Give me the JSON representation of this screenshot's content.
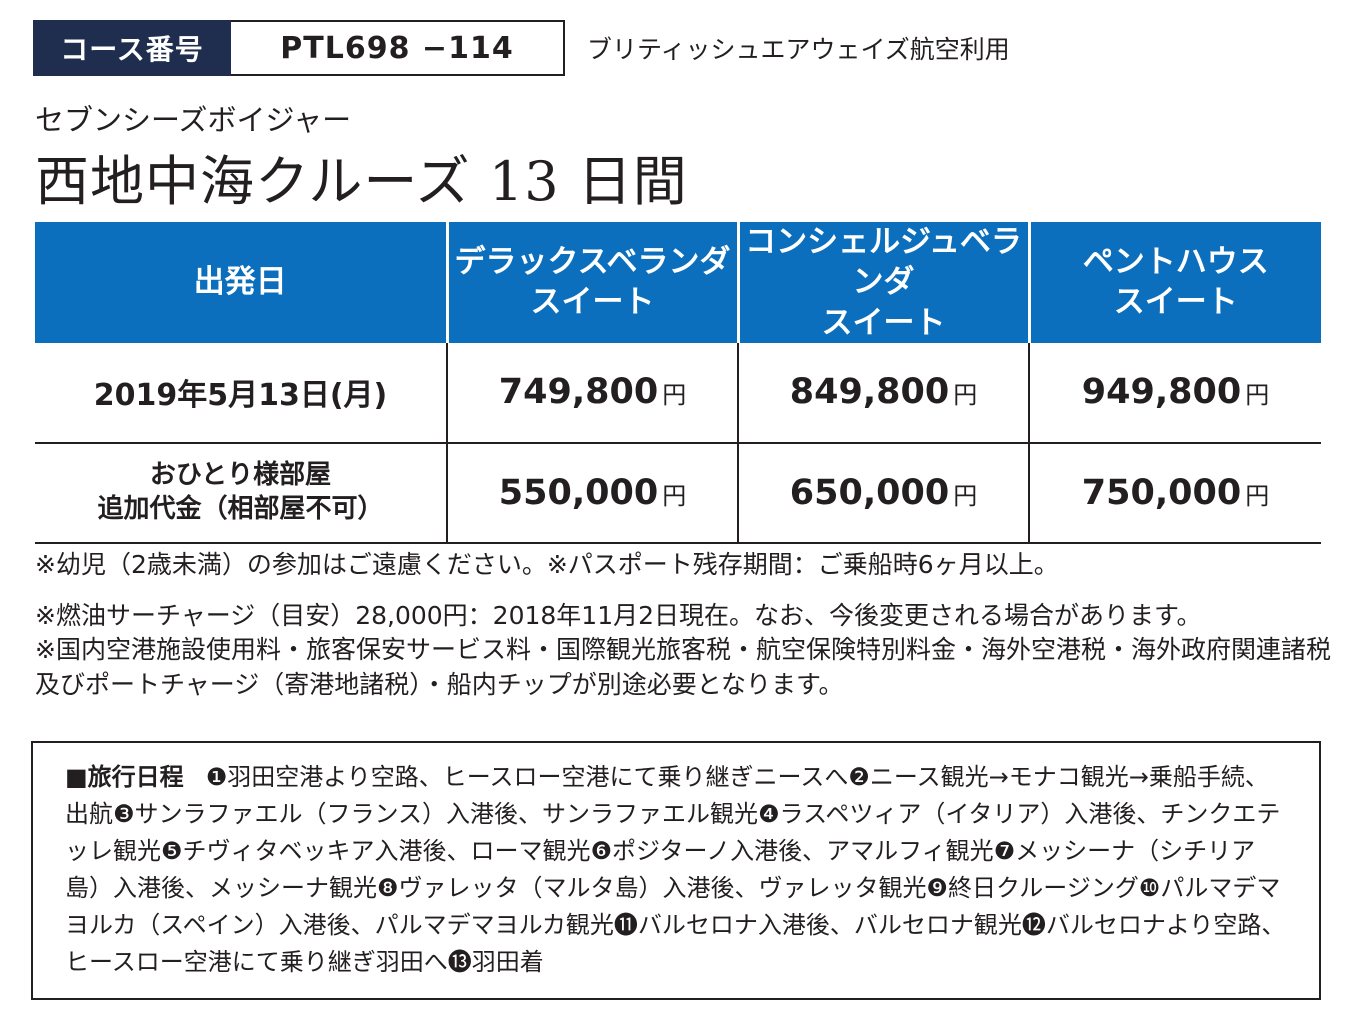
{
  "course": {
    "label": "コース番号",
    "code": "PTL698 −114",
    "airline": "ブリティッシュエアウェイズ航空利用"
  },
  "ship": "セブンシーズボイジャー",
  "tour_title": "西地中海クルーズ 13 日間",
  "table": {
    "headers": [
      {
        "line1": "出発日",
        "line2": ""
      },
      {
        "line1": "デラックスベランダ",
        "line2": "スイート"
      },
      {
        "line1": "コンシェルジュベランダ",
        "line2": "スイート"
      },
      {
        "line1": "ペントハウス",
        "line2": "スイート"
      }
    ],
    "yen": "円",
    "rows": [
      {
        "label": "2019年5月13日(月)",
        "prices": [
          "749,800",
          "849,800",
          "949,800"
        ]
      },
      {
        "label_line1": "おひとり様部屋",
        "label_line2": "追加代金（相部屋不可）",
        "prices": [
          "550,000",
          "650,000",
          "750,000"
        ]
      }
    ]
  },
  "notes": [
    "※幼児（2歳未満）の参加はご遠慮ください。※パスポート残存期間：ご乗船時6ヶ月以上。",
    "※燃油サーチャージ（目安）28,000円：2018年11月2日現在。なお、今後変更される場合があります。",
    "※国内空港施設使用料・旅客保安サービス料・国際観光旅客税・航空保険特別料金・海外空港税・海外政府関連諸税及びポートチャージ（寄港地諸税）・船内チップが別途必要となります。"
  ],
  "itinerary": {
    "label": "■旅行日程",
    "text": "❶羽田空港より空路、ヒースロー空港にて乗り継ぎニースへ❷ニース観光→モナコ観光→乗船手続、出航❸サンラファエル（フランス）入港後、サンラファエル観光❹ラスペツィア（イタリア）入港後、チンクエテッレ観光❺チヴィタベッキア入港後、ローマ観光❻ポジターノ入港後、アマルフィ観光❼メッシーナ（シチリア島）入港後、メッシーナ観光❽ヴァレッタ（マルタ島）入港後、ヴァレッタ観光❾終日クルージング❿パルマデマヨルカ（スペイン）入港後、パルマデマヨルカ観光⓫バルセロナ入港後、バルセロナ観光⓬バルセロナより空路、ヒースロー空港にて乗り継ぎ羽田へ⓭羽田着"
  }
}
